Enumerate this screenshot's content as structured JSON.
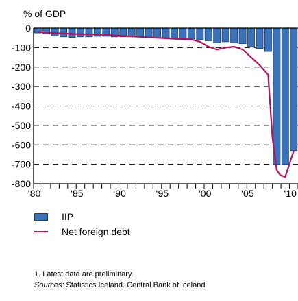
{
  "chart_data": {
    "type": "bar",
    "ylabel": "% of GDP",
    "ylim": [
      -800,
      0
    ],
    "yticks": [
      0,
      -100,
      -200,
      -300,
      -400,
      -500,
      -600,
      -700,
      -800
    ],
    "ytick_labels": [
      "0",
      "-100",
      "-200",
      "-300",
      "-400",
      "-500",
      "-600",
      "-700",
      "-800"
    ],
    "xrange": [
      1980,
      2010
    ],
    "xtick_labels": [
      {
        "year": 1980,
        "label": "‘80"
      },
      {
        "year": 1985,
        "label": "‘85"
      },
      {
        "year": 1990,
        "label": "‘90"
      },
      {
        "year": 1995,
        "label": "‘95"
      },
      {
        "year": 2000,
        "label": "‘00"
      },
      {
        "year": 2005,
        "label": "‘05"
      },
      {
        "year": 2010,
        "label": "‘10"
      }
    ],
    "grid": "dashed-horizontal",
    "legend_position": "below",
    "iip": {
      "name": "IIP",
      "color": "#3a73bb",
      "x": [
        1980,
        1981,
        1982,
        1983,
        1984,
        1985,
        1986,
        1987,
        1988,
        1989,
        1990,
        1991,
        1992,
        1993,
        1994,
        1995,
        1996,
        1997,
        1998,
        1999,
        2000,
        2001,
        2002,
        2003,
        2004,
        2005,
        2006,
        2007,
        2008,
        2009,
        2010
      ],
      "values": [
        -25,
        -30,
        -40,
        -45,
        -48,
        -45,
        -45,
        -42,
        -42,
        -45,
        -45,
        -45,
        -45,
        -50,
        -52,
        -50,
        -50,
        -55,
        -55,
        -60,
        -65,
        -75,
        -70,
        -75,
        -80,
        -95,
        -105,
        -120,
        -700,
        -700,
        -630
      ]
    },
    "net_foreign_debt": {
      "name": "Net foreign debt",
      "color": "#b5125c",
      "x": [
        1980,
        1982,
        1984,
        1986,
        1988,
        1990,
        1992,
        1994,
        1996,
        1998,
        1999,
        2000,
        2001,
        2002,
        2003,
        2004,
        2005,
        2006,
        2007,
        2007.5,
        2008,
        2008.4,
        2009,
        2010
      ],
      "values": [
        -20,
        -25,
        -30,
        -32,
        -35,
        -40,
        -45,
        -50,
        -55,
        -58,
        -70,
        -95,
        -110,
        -100,
        -95,
        -110,
        -150,
        -190,
        -240,
        -560,
        -730,
        -755,
        -765,
        -630
      ]
    }
  },
  "legend": {
    "iip_label": "IIP",
    "debt_label": "Net foreign debt"
  },
  "notes": {
    "footnote": "1. Latest data are preliminary.",
    "sources_label": "Sources:",
    "sources_text": " Statistics Iceland. Central Bank of Iceland."
  }
}
